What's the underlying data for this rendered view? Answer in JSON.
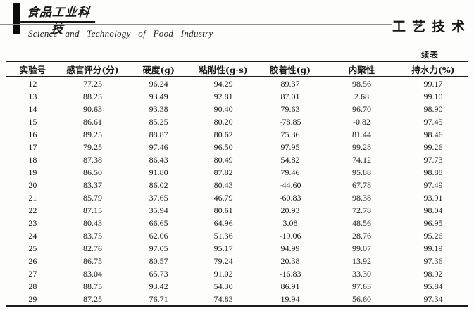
{
  "masthead": {
    "logo_cn": "食品工业科技",
    "journal_en": "Science and Technology of Food Industry",
    "section_cn": "工艺技术"
  },
  "table": {
    "continued_label": "续表",
    "columns": [
      "实验号",
      "感官评分(分)",
      "硬度(g)",
      "粘附性(g·s)",
      "胶着性(g)",
      "内聚性",
      "持水力(%)"
    ],
    "rows": [
      [
        "12",
        "77.25",
        "96.24",
        "94.29",
        "89.37",
        "98.56",
        "99.17"
      ],
      [
        "13",
        "88.25",
        "93.49",
        "92.81",
        "87.01",
        "2.68",
        "99.10"
      ],
      [
        "14",
        "90.63",
        "93.38",
        "90.40",
        "79.63",
        "96.70",
        "98.90"
      ],
      [
        "15",
        "86.61",
        "85.25",
        "80.20",
        "-78.85",
        "-0.82",
        "97.45"
      ],
      [
        "16",
        "89.25",
        "88.87",
        "80.62",
        "75.36",
        "81.44",
        "98.46"
      ],
      [
        "17",
        "79.25",
        "97.46",
        "96.50",
        "97.95",
        "99.28",
        "99.26"
      ],
      [
        "18",
        "87.38",
        "86.43",
        "80.49",
        "54.82",
        "74.12",
        "97.73"
      ],
      [
        "19",
        "86.50",
        "91.80",
        "87.82",
        "79.46",
        "95.88",
        "98.88"
      ],
      [
        "20",
        "83.37",
        "86.02",
        "80.43",
        "-44.60",
        "67.78",
        "97.49"
      ],
      [
        "21",
        "85.79",
        "37.65",
        "46.79",
        "-60.83",
        "98.38",
        "93.91"
      ],
      [
        "22",
        "87.15",
        "35.94",
        "80.61",
        "20.93",
        "72.78",
        "98.04"
      ],
      [
        "23",
        "80.43",
        "66.65",
        "64.96",
        "3.08",
        "48.56",
        "96.95"
      ],
      [
        "24",
        "83.75",
        "62.06",
        "51.36",
        "-19.06",
        "28.76",
        "95.26"
      ],
      [
        "25",
        "82.76",
        "97.05",
        "95.17",
        "94.99",
        "99.07",
        "99.19"
      ],
      [
        "26",
        "86.75",
        "80.57",
        "79.24",
        "20.38",
        "13.92",
        "97.36"
      ],
      [
        "27",
        "83.04",
        "65.73",
        "91.02",
        "-16.83",
        "33.30",
        "98.92"
      ],
      [
        "28",
        "88.75",
        "93.42",
        "54.30",
        "86.91",
        "97.63",
        "95.84"
      ],
      [
        "29",
        "87.25",
        "76.71",
        "74.83",
        "19.94",
        "56.60",
        "97.34"
      ]
    ]
  }
}
